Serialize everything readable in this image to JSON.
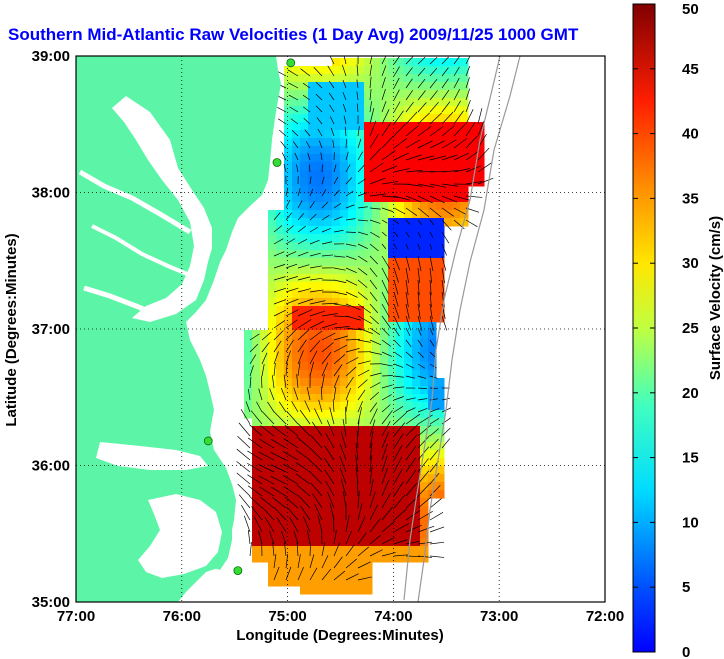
{
  "title": "Southern Mid-Atlantic Raw Velocities (1 Day Avg) 2009/11/25 1000 GMT",
  "colors": {
    "title": "#0000ff",
    "land": "#5cf5a8",
    "water": "#ffffff",
    "grid": "#000000",
    "vectors": "#000000",
    "station": "#33dd33",
    "bathymetry": "#999999"
  },
  "chart_data": {
    "type": "heatmap",
    "xlabel": "Longitude (Degrees:Minutes)",
    "ylabel": "Latitude (Degrees:Minutes)",
    "xlim": [
      -77,
      -72
    ],
    "ylim": [
      35,
      39
    ],
    "x_ticks": [
      "77:00",
      "76:00",
      "75:00",
      "74:00",
      "73:00",
      "72:00"
    ],
    "y_ticks": [
      "39:00",
      "38:00",
      "37:00",
      "36:00",
      "35:00"
    ],
    "grid": true,
    "colorbar": {
      "label": "Surface Velocity (cm/s)",
      "range": [
        0,
        50
      ],
      "ticks": [
        "0",
        "5",
        "10",
        "15",
        "20",
        "25",
        "30",
        "35",
        "40",
        "45",
        "50"
      ],
      "colormap": "jet"
    },
    "stations": [
      {
        "lon": -74.97,
        "lat": 38.95
      },
      {
        "lon": -75.1,
        "lat": 38.22
      },
      {
        "lon": -75.75,
        "lat": 36.18
      },
      {
        "lon": -75.47,
        "lat": 35.23
      }
    ]
  }
}
